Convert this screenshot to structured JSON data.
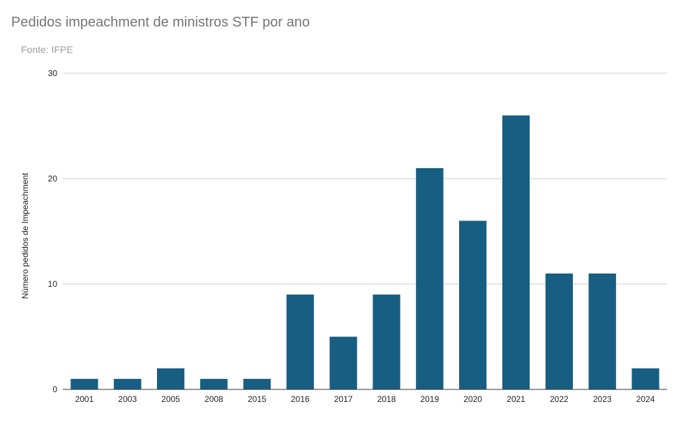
{
  "chart_data": {
    "type": "bar",
    "title": "Pedidos impeachment de ministros STF por ano",
    "subtitle": "Fonte: IFPE",
    "xlabel": "",
    "ylabel": "Número pedidos de Impeachment",
    "categories": [
      "2001",
      "2003",
      "2005",
      "2008",
      "2015",
      "2016",
      "2017",
      "2018",
      "2019",
      "2020",
      "2021",
      "2022",
      "2023",
      "2024"
    ],
    "values": [
      1,
      1,
      2,
      1,
      1,
      9,
      5,
      9,
      21,
      16,
      26,
      11,
      11,
      2
    ],
    "ylim": [
      0,
      30
    ],
    "yticks": [
      0,
      10,
      20,
      30
    ],
    "grid": true,
    "legend": "none",
    "colors": {
      "bar": "#175e82",
      "grid": "#cccccc",
      "axis": "#333333",
      "title": "#757575",
      "subtitle": "#9e9e9e"
    }
  }
}
